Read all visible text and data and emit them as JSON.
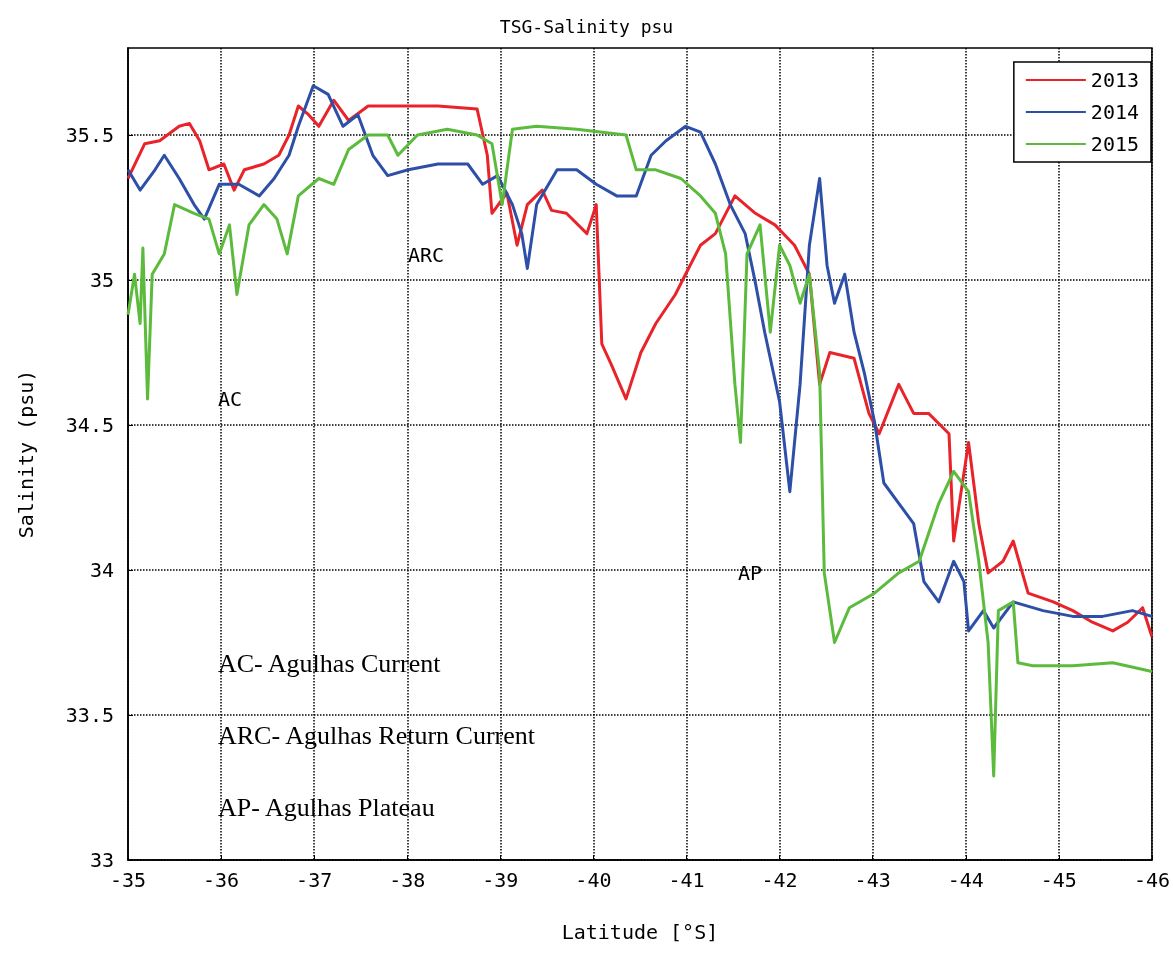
{
  "chart_data": {
    "type": "line",
    "title": "TSG-Salinity psu",
    "xlabel": "Latitude [°S]",
    "ylabel": "Salinity (psu)",
    "xlim": [
      -35,
      -46
    ],
    "xticks": [
      -35,
      -36,
      -37,
      -38,
      -39,
      -40,
      -41,
      -42,
      -43,
      -44,
      -45,
      -46
    ],
    "ylim": [
      33,
      35.8
    ],
    "yticks": [
      33,
      33.5,
      34,
      34.5,
      35,
      35.5
    ],
    "grid": true,
    "legend": "top right",
    "marker": "none",
    "line_style": "solid",
    "annotations": [
      "ARC",
      "AC",
      "AP",
      "AC- Agulhas Current",
      "ARC- Agulhas Return Current",
      "AP- Agulhas Plateau"
    ],
    "series": [
      {
        "name": "2013",
        "color": "#e8242a",
        "x": [
          -35,
          -35.18,
          -35.34,
          -35.55,
          -35.66,
          -35.77,
          -35.87,
          -36.03,
          -36.14,
          -36.25,
          -36.46,
          -36.62,
          -36.73,
          -36.83,
          -36.94,
          -37.05,
          -37.21,
          -37.37,
          -37.58,
          -37.9,
          -38.33,
          -38.75,
          -38.86,
          -38.91,
          -39.07,
          -39.18,
          -39.29,
          -39.45,
          -39.55,
          -39.71,
          -39.93,
          -40.03,
          -40.09,
          -40.19,
          -40.35,
          -40.51,
          -40.67,
          -40.88,
          -40.99,
          -41.15,
          -41.31,
          -41.52,
          -41.74,
          -41.95,
          -42.16,
          -42.32,
          -42.43,
          -42.54,
          -42.8,
          -42.96,
          -43.07,
          -43.28,
          -43.44,
          -43.6,
          -43.82,
          -43.87,
          -44.03,
          -44.14,
          -44.24,
          -44.4,
          -44.51,
          -44.67,
          -44.94,
          -45.15,
          -45.36,
          -45.58,
          -45.74,
          -45.9,
          -46
        ],
        "values": [
          35.35,
          35.47,
          35.48,
          35.53,
          35.54,
          35.48,
          35.38,
          35.4,
          35.31,
          35.38,
          35.4,
          35.43,
          35.5,
          35.6,
          35.57,
          35.53,
          35.62,
          35.55,
          35.6,
          35.6,
          35.6,
          35.59,
          35.43,
          35.23,
          35.3,
          35.12,
          35.26,
          35.31,
          35.24,
          35.23,
          35.16,
          35.26,
          34.78,
          34.71,
          34.59,
          34.75,
          34.85,
          34.95,
          35.02,
          35.12,
          35.16,
          35.29,
          35.23,
          35.19,
          35.12,
          35.02,
          34.64,
          34.75,
          34.73,
          34.54,
          34.47,
          34.64,
          34.54,
          34.54,
          34.47,
          34.1,
          34.44,
          34.16,
          33.99,
          34.03,
          34.1,
          33.92,
          33.89,
          33.86,
          33.82,
          33.79,
          33.82,
          33.87,
          33.77
        ]
      },
      {
        "name": "2014",
        "color": "#2e4fa8",
        "x": [
          -35,
          -35.13,
          -35.29,
          -35.39,
          -35.55,
          -35.71,
          -35.82,
          -35.98,
          -36.19,
          -36.41,
          -36.57,
          -36.73,
          -36.83,
          -36.99,
          -37.15,
          -37.31,
          -37.47,
          -37.63,
          -37.79,
          -38.01,
          -38.33,
          -38.65,
          -38.81,
          -38.97,
          -39.13,
          -39.23,
          -39.29,
          -39.39,
          -39.61,
          -39.82,
          -40.03,
          -40.25,
          -40.46,
          -40.62,
          -40.78,
          -40.99,
          -41.15,
          -41.31,
          -41.47,
          -41.63,
          -41.74,
          -41.84,
          -42.0,
          -42.11,
          -42.22,
          -42.32,
          -42.43,
          -42.51,
          -42.59,
          -42.7,
          -42.8,
          -42.91,
          -43.02,
          -43.12,
          -43.28,
          -43.44,
          -43.55,
          -43.71,
          -43.87,
          -43.98,
          -44.03,
          -44.19,
          -44.3,
          -44.51,
          -44.83,
          -45.15,
          -45.47,
          -45.79,
          -46
        ],
        "values": [
          35.38,
          35.31,
          35.38,
          35.43,
          35.35,
          35.26,
          35.21,
          35.33,
          35.33,
          35.29,
          35.35,
          35.43,
          35.53,
          35.67,
          35.64,
          35.53,
          35.57,
          35.43,
          35.36,
          35.38,
          35.4,
          35.4,
          35.33,
          35.36,
          35.26,
          35.16,
          35.04,
          35.26,
          35.38,
          35.38,
          35.33,
          35.29,
          35.29,
          35.43,
          35.48,
          35.53,
          35.51,
          35.4,
          35.26,
          35.16,
          34.99,
          34.82,
          34.58,
          34.27,
          34.64,
          35.12,
          35.35,
          35.05,
          34.92,
          35.02,
          34.82,
          34.68,
          34.51,
          34.3,
          34.23,
          34.16,
          33.96,
          33.89,
          34.03,
          33.96,
          33.79,
          33.86,
          33.8,
          33.89,
          33.86,
          33.84,
          33.84,
          33.86,
          33.84
        ]
      },
      {
        "name": "2015",
        "color": "#5cbb3c",
        "x": [
          -35,
          -35.07,
          -35.13,
          -35.16,
          -35.21,
          -35.26,
          -35.39,
          -35.5,
          -35.71,
          -35.87,
          -35.98,
          -36.09,
          -36.17,
          -36.3,
          -36.46,
          -36.6,
          -36.71,
          -36.83,
          -37.05,
          -37.21,
          -37.37,
          -37.58,
          -37.79,
          -37.9,
          -38.11,
          -38.43,
          -38.75,
          -38.91,
          -39.02,
          -39.13,
          -39.39,
          -39.82,
          -40.35,
          -40.46,
          -40.67,
          -40.94,
          -41.15,
          -41.31,
          -41.42,
          -41.52,
          -41.58,
          -41.65,
          -41.79,
          -41.9,
          -42.0,
          -42.11,
          -42.22,
          -42.32,
          -42.43,
          -42.48,
          -42.59,
          -42.75,
          -43.02,
          -43.28,
          -43.5,
          -43.71,
          -43.87,
          -44.03,
          -44.14,
          -44.24,
          -44.3,
          -44.35,
          -44.51,
          -44.56,
          -44.72,
          -45.15,
          -45.58,
          -46
        ],
        "values": [
          34.88,
          35.02,
          34.85,
          35.11,
          34.59,
          35.02,
          35.09,
          35.26,
          35.23,
          35.21,
          35.09,
          35.19,
          34.95,
          35.19,
          35.26,
          35.21,
          35.09,
          35.29,
          35.35,
          35.33,
          35.45,
          35.5,
          35.5,
          35.43,
          35.5,
          35.52,
          35.5,
          35.47,
          35.26,
          35.52,
          35.53,
          35.52,
          35.5,
          35.38,
          35.38,
          35.35,
          35.29,
          35.23,
          35.09,
          34.64,
          34.44,
          35.09,
          35.19,
          34.82,
          35.12,
          35.05,
          34.92,
          35.02,
          34.68,
          33.99,
          33.75,
          33.87,
          33.92,
          33.99,
          34.03,
          34.23,
          34.34,
          34.27,
          34.03,
          33.75,
          33.29,
          33.86,
          33.89,
          33.68,
          33.67,
          33.67,
          33.68,
          33.65
        ]
      }
    ]
  }
}
